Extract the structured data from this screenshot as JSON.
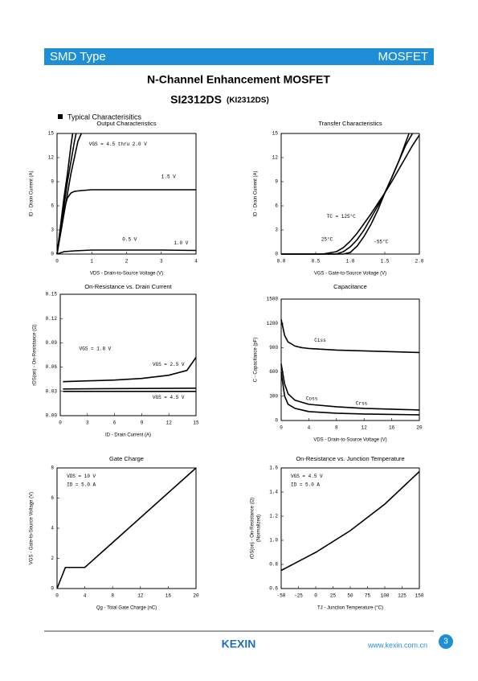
{
  "header": {
    "left": "SMD Type",
    "right": "MOSFET"
  },
  "title": "N-Channel Enhancement MOSFET",
  "part": "SI2312DS",
  "part_alt": "(KI2312DS)",
  "section": "Typical Characterisitics",
  "footer": {
    "logo": "KEXIN",
    "url": "www.kexin.com.cn",
    "page": "3"
  },
  "chart_data": [
    {
      "type": "line",
      "title": "Output Characteristics",
      "xlabel": "VDS - Drain-to-Source Voltage (V)",
      "ylabel": "ID - Drain Current (A)",
      "xlim": [
        0,
        4
      ],
      "xticks": [
        0,
        1,
        2,
        3,
        4
      ],
      "ylim": [
        0,
        15
      ],
      "yticks": [
        0,
        3,
        6,
        9,
        12,
        15
      ],
      "series": [
        {
          "color": "#000000",
          "x": [
            0,
            0.1,
            0.2,
            0.3,
            0.4,
            0.45
          ],
          "values": [
            0,
            3.5,
            7,
            10,
            13.5,
            15
          ]
        },
        {
          "color": "#000000",
          "x": [
            0,
            0.1,
            0.2,
            0.3,
            0.4,
            0.5,
            0.55
          ],
          "values": [
            0,
            3,
            6,
            9,
            11.5,
            14,
            15
          ]
        },
        {
          "color": "#000000",
          "x": [
            0,
            0.1,
            0.2,
            0.3,
            0.4,
            0.5,
            0.6,
            0.7
          ],
          "values": [
            0,
            2.5,
            5,
            7.5,
            10,
            12,
            14,
            15
          ]
        },
        {
          "color": "#000000",
          "x": [
            0,
            0.1,
            0.2,
            0.3,
            0.4,
            0.5,
            0.7,
            1,
            2,
            3,
            4
          ],
          "values": [
            0,
            3,
            5.5,
            7,
            7.6,
            7.8,
            7.9,
            8,
            8,
            8,
            8
          ]
        },
        {
          "color": "#000000",
          "x": [
            0,
            0.2,
            0.5,
            1,
            2,
            3,
            4
          ],
          "values": [
            0,
            0.3,
            0.4,
            0.5,
            0.5,
            0.5,
            0.45
          ]
        }
      ],
      "annotations": [
        "VGS = 4.5 thru 2.0 V",
        "1.5 V",
        "0.5 V",
        "1.0 V"
      ]
    },
    {
      "type": "line",
      "title": "Transfer Characteristics",
      "xlabel": "VGS - Gate-to-Source Voltage (V)",
      "ylabel": "ID - Drain Current (A)",
      "xlim": [
        0,
        2
      ],
      "xticks": [
        {
          "value": 0,
          "label": "0.0"
        },
        0.5,
        {
          "value": 1,
          "label": "1.0"
        },
        1.5,
        {
          "value": 2,
          "label": "2.0"
        }
      ],
      "ylim": [
        0,
        15
      ],
      "yticks": [
        0,
        3,
        6,
        9,
        12,
        15
      ],
      "series": [
        {
          "color": "#000000",
          "x": [
            0,
            0.6,
            0.8,
            0.9,
            1.0,
            1.1,
            1.2,
            1.3,
            1.4,
            1.5,
            1.6,
            1.7,
            1.85
          ],
          "values": [
            0,
            0,
            0.3,
            0.8,
            1.6,
            2.6,
            3.8,
            5,
            6.3,
            7.6,
            9.5,
            11.5,
            15
          ]
        },
        {
          "color": "#000000",
          "x": [
            0,
            0.8,
            0.9,
            1.0,
            1.1,
            1.2,
            1.3,
            1.4,
            1.5,
            1.6,
            1.7,
            1.8,
            1.9
          ],
          "values": [
            0,
            0,
            0.3,
            0.9,
            1.8,
            3,
            4.5,
            6,
            7.6,
            9.5,
            11.5,
            13.5,
            15
          ]
        },
        {
          "color": "#000000",
          "x": [
            0,
            0.9,
            1.0,
            1.1,
            1.2,
            1.3,
            1.4,
            1.5,
            1.6,
            1.7,
            1.8,
            1.9,
            2.0
          ],
          "values": [
            0,
            0,
            0.2,
            1,
            2.2,
            3.7,
            5.5,
            7.6,
            9,
            10.5,
            12,
            13.5,
            14.8
          ]
        }
      ],
      "annotations": [
        "TC = 125°C",
        "25°C",
        "-55°C"
      ]
    },
    {
      "type": "line",
      "title": "On-Resistance vs. Drain Current",
      "xlabel": "ID - Drain Current (A)",
      "ylabel": "rDS(on) - On-Resistance (Ω)",
      "xlim": [
        0,
        15
      ],
      "xticks": [
        0,
        3,
        6,
        9,
        12,
        15
      ],
      "ylim": [
        0,
        0.15
      ],
      "yticks": [
        {
          "value": 0,
          "label": "0.00"
        },
        {
          "value": 0.03,
          "label": "0.03"
        },
        {
          "value": 0.06,
          "label": "0.06"
        },
        {
          "value": 0.09,
          "label": "0.09"
        },
        {
          "value": 0.12,
          "label": "0.12"
        },
        {
          "value": 0.15,
          "label": "0.15"
        }
      ],
      "series": [
        {
          "color": "#000000",
          "x": [
            0.3,
            3,
            6,
            9,
            12,
            14,
            15
          ],
          "values": [
            0.042,
            0.043,
            0.044,
            0.046,
            0.05,
            0.056,
            0.072
          ]
        },
        {
          "color": "#000000",
          "x": [
            0.3,
            15
          ],
          "values": [
            0.033,
            0.034
          ]
        },
        {
          "color": "#000000",
          "x": [
            0.3,
            15
          ],
          "values": [
            0.03,
            0.03
          ]
        }
      ],
      "annotations": [
        "VGS = 1.8 V",
        "VGS = 2.5 V",
        "VGS = 4.5 V"
      ]
    },
    {
      "type": "line",
      "title": "Capacitance",
      "xlabel": "VDS - Drain-to-Source Voltage (V)",
      "ylabel": "C - Capacitance (pF)",
      "xlim": [
        0,
        20
      ],
      "xticks": [
        0,
        4,
        8,
        12,
        16,
        20
      ],
      "ylim": [
        0,
        1500
      ],
      "yticks": [
        0,
        300,
        600,
        900,
        1200,
        1500
      ],
      "series": [
        {
          "color": "#000000",
          "x": [
            0,
            0.5,
            1,
            2,
            3,
            4,
            6,
            8,
            12,
            16,
            20
          ],
          "values": [
            1250,
            1050,
            970,
            920,
            900,
            890,
            880,
            870,
            860,
            850,
            840
          ]
        },
        {
          "color": "#000000",
          "x": [
            0,
            0.5,
            1,
            2,
            4,
            8,
            12,
            16,
            20
          ],
          "values": [
            700,
            450,
            330,
            250,
            200,
            170,
            150,
            140,
            130
          ]
        },
        {
          "color": "#000000",
          "x": [
            0,
            0.5,
            1,
            2,
            4,
            8,
            12,
            16,
            20
          ],
          "values": [
            600,
            300,
            200,
            150,
            110,
            90,
            80,
            75,
            70
          ]
        }
      ],
      "annotations": [
        "Ciss",
        "Coss",
        "Crss"
      ]
    },
    {
      "type": "line",
      "title": "Gate Charge",
      "xlabel": "Qg - Total Gate Charge (nC)",
      "ylabel": "VGS - Gate-to-Source Voltage (V)",
      "xlim": [
        0,
        20
      ],
      "xticks": [
        0,
        4,
        8,
        12,
        16,
        20
      ],
      "ylim": [
        0,
        8
      ],
      "yticks": [
        0,
        2,
        4,
        6,
        8
      ],
      "series": [
        {
          "color": "#000000",
          "x": [
            0,
            1.2,
            2,
            4,
            20
          ],
          "values": [
            0,
            1.4,
            1.4,
            1.4,
            8
          ]
        }
      ],
      "annotations": [
        "VDS = 10 V",
        "ID = 5.0 A"
      ]
    },
    {
      "type": "line",
      "title": "On-Resistance vs. Junction Temperature",
      "xlabel": "TJ - Junction Temperature (°C)",
      "ylabel": "rDS(on) - On-Resistance (Ω)",
      "ylabel_note": "(Normalized)",
      "xlim": [
        -50,
        150
      ],
      "xticks": [
        -50,
        -25,
        0,
        25,
        50,
        75,
        100,
        125,
        150
      ],
      "ylim": [
        0.6,
        1.6
      ],
      "yticks": [
        0.6,
        0.8,
        {
          "value": 1,
          "label": "1.0"
        },
        1.2,
        1.4,
        1.6
      ],
      "series": [
        {
          "color": "#000000",
          "x": [
            -50,
            0,
            50,
            100,
            150
          ],
          "values": [
            0.75,
            0.9,
            1.08,
            1.3,
            1.57
          ]
        }
      ],
      "annotations": [
        "VGS = 4.5 V",
        "ID = 5.0 A"
      ]
    }
  ]
}
